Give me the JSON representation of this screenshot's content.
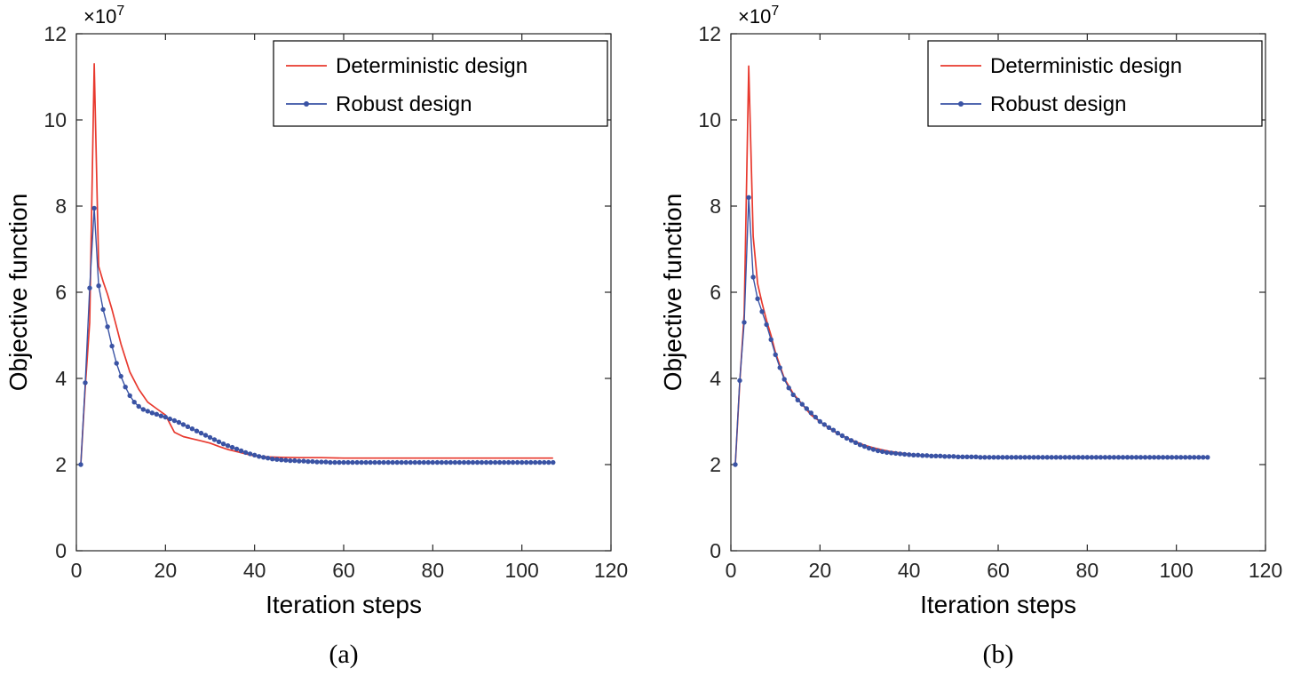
{
  "page": {
    "background": "#ffffff"
  },
  "colors": {
    "deterministic": "#e8392e",
    "robust": "#3a53a4",
    "axis": "#262626",
    "text": "#000000",
    "legend_border": "#000000",
    "legend_fill": "#ffffff"
  },
  "captions": {
    "a": "(a)",
    "b": "(b)"
  },
  "chart_data": [
    {
      "id": "a",
      "type": "line",
      "title": "",
      "caption": "(a)",
      "xlabel": "Iteration steps",
      "ylabel": "Objective function",
      "y_multiplier_label": "×10",
      "y_multiplier_exp": "7",
      "xlim": [
        0,
        120
      ],
      "ylim": [
        0,
        12
      ],
      "xticks": [
        0,
        20,
        40,
        60,
        80,
        100,
        120
      ],
      "yticks": [
        0,
        2,
        4,
        6,
        8,
        10,
        12
      ],
      "grid": false,
      "legend": {
        "position": "top-right",
        "entries": [
          "Deterministic design",
          "Robust design"
        ]
      },
      "series": [
        {
          "name": "Deterministic design",
          "color": "#e8392e",
          "marker": "none",
          "x": [
            1,
            2,
            3,
            4,
            5,
            6,
            7,
            8,
            9,
            10,
            12,
            14,
            16,
            18,
            20,
            22,
            24,
            26,
            28,
            30,
            32,
            34,
            36,
            38,
            40,
            43,
            46,
            50,
            55,
            60,
            65,
            70,
            75,
            80,
            85,
            90,
            95,
            100,
            107
          ],
          "y": [
            2.0,
            3.8,
            5.3,
            11.3,
            6.6,
            6.25,
            5.95,
            5.6,
            5.2,
            4.8,
            4.15,
            3.75,
            3.45,
            3.3,
            3.15,
            2.75,
            2.65,
            2.6,
            2.55,
            2.5,
            2.42,
            2.35,
            2.3,
            2.25,
            2.2,
            2.18,
            2.17,
            2.16,
            2.16,
            2.15,
            2.15,
            2.15,
            2.15,
            2.15,
            2.15,
            2.15,
            2.15,
            2.15,
            2.15
          ]
        },
        {
          "name": "Robust design",
          "color": "#3a53a4",
          "marker": "dot",
          "x_start": 1,
          "y": [
            2.0,
            3.9,
            6.1,
            7.95,
            6.15,
            5.6,
            5.2,
            4.75,
            4.35,
            4.05,
            3.8,
            3.6,
            3.45,
            3.35,
            3.28,
            3.24,
            3.2,
            3.17,
            3.13,
            3.1,
            3.06,
            3.02,
            2.98,
            2.93,
            2.88,
            2.83,
            2.78,
            2.73,
            2.68,
            2.63,
            2.58,
            2.53,
            2.48,
            2.44,
            2.4,
            2.36,
            2.32,
            2.28,
            2.25,
            2.22,
            2.19,
            2.17,
            2.15,
            2.13,
            2.12,
            2.11,
            2.1,
            2.09,
            2.09,
            2.08,
            2.08,
            2.07,
            2.07,
            2.06,
            2.06,
            2.06,
            2.05,
            2.05,
            2.05,
            2.05,
            2.05,
            2.05,
            2.05,
            2.05,
            2.05,
            2.05,
            2.05,
            2.05,
            2.05,
            2.05,
            2.05,
            2.05,
            2.05,
            2.05,
            2.05,
            2.05,
            2.05,
            2.05,
            2.05,
            2.05,
            2.05,
            2.05,
            2.05,
            2.05,
            2.05,
            2.05,
            2.05,
            2.05,
            2.05,
            2.05,
            2.05,
            2.05,
            2.05,
            2.05,
            2.05,
            2.05,
            2.05,
            2.05,
            2.05,
            2.05,
            2.05,
            2.05,
            2.05,
            2.05,
            2.05,
            2.05,
            2.05
          ]
        }
      ]
    },
    {
      "id": "b",
      "type": "line",
      "title": "",
      "caption": "(b)",
      "xlabel": "Iteration steps",
      "ylabel": "Objective function",
      "y_multiplier_label": "×10",
      "y_multiplier_exp": "7",
      "xlim": [
        0,
        120
      ],
      "ylim": [
        0,
        12
      ],
      "xticks": [
        0,
        20,
        40,
        60,
        80,
        100,
        120
      ],
      "yticks": [
        0,
        2,
        4,
        6,
        8,
        10,
        12
      ],
      "grid": false,
      "legend": {
        "position": "top-right",
        "entries": [
          "Deterministic design",
          "Robust design"
        ]
      },
      "series": [
        {
          "name": "Deterministic design",
          "color": "#e8392e",
          "marker": "none",
          "x": [
            1,
            2,
            3,
            4,
            5,
            6,
            7,
            8,
            9,
            10,
            12,
            14,
            16,
            18,
            20,
            22,
            24,
            26,
            28,
            30,
            32,
            34,
            36,
            38,
            40,
            43,
            46,
            50,
            55,
            60,
            65,
            70,
            75,
            80,
            85,
            90,
            95,
            100,
            107
          ],
          "y": [
            2.0,
            3.9,
            5.5,
            11.25,
            7.3,
            6.2,
            5.75,
            5.35,
            5.0,
            4.6,
            4.0,
            3.65,
            3.4,
            3.15,
            3.0,
            2.85,
            2.72,
            2.62,
            2.53,
            2.45,
            2.39,
            2.34,
            2.3,
            2.27,
            2.24,
            2.21,
            2.2,
            2.19,
            2.18,
            2.17,
            2.17,
            2.16,
            2.16,
            2.16,
            2.16,
            2.16,
            2.16,
            2.16,
            2.16
          ]
        },
        {
          "name": "Robust design",
          "color": "#3a53a4",
          "marker": "dot",
          "x_start": 1,
          "y": [
            2.0,
            3.95,
            5.3,
            8.2,
            6.35,
            5.85,
            5.55,
            5.25,
            4.9,
            4.55,
            4.25,
            3.98,
            3.78,
            3.62,
            3.5,
            3.4,
            3.3,
            3.2,
            3.1,
            3.0,
            2.93,
            2.86,
            2.8,
            2.73,
            2.67,
            2.61,
            2.56,
            2.51,
            2.46,
            2.42,
            2.38,
            2.35,
            2.32,
            2.3,
            2.28,
            2.27,
            2.26,
            2.25,
            2.24,
            2.23,
            2.22,
            2.22,
            2.21,
            2.21,
            2.2,
            2.2,
            2.2,
            2.19,
            2.19,
            2.19,
            2.18,
            2.18,
            2.18,
            2.18,
            2.18,
            2.17,
            2.17,
            2.17,
            2.17,
            2.17,
            2.17,
            2.17,
            2.17,
            2.17,
            2.17,
            2.17,
            2.17,
            2.17,
            2.17,
            2.17,
            2.17,
            2.17,
            2.17,
            2.17,
            2.17,
            2.17,
            2.17,
            2.17,
            2.17,
            2.17,
            2.17,
            2.17,
            2.17,
            2.17,
            2.17,
            2.17,
            2.17,
            2.17,
            2.17,
            2.17,
            2.17,
            2.17,
            2.17,
            2.17,
            2.17,
            2.17,
            2.17,
            2.17,
            2.17,
            2.17,
            2.17,
            2.17,
            2.17,
            2.17,
            2.17,
            2.17,
            2.17
          ]
        }
      ]
    }
  ]
}
